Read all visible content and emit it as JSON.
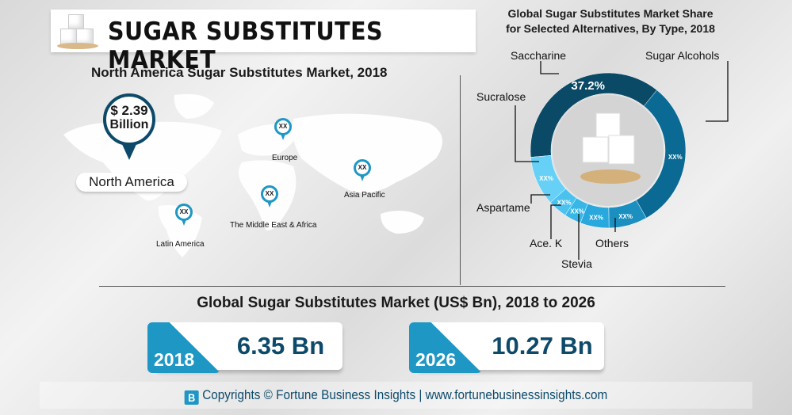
{
  "header": {
    "title": "SUGAR SUBSTITUTES MARKET"
  },
  "map": {
    "title": "North America Sugar Substitutes Market, 2018",
    "north_america": {
      "value": "$ 2.39",
      "unit": "Billion",
      "label": "North America"
    },
    "regions": [
      {
        "label": "Europe",
        "value": "XX"
      },
      {
        "label": "Asia Pacific",
        "value": "XX"
      },
      {
        "label": "The Middle East & Africa",
        "value": "XX"
      },
      {
        "label": "Latin America",
        "value": "XX"
      }
    ]
  },
  "chart_data": {
    "type": "pie",
    "title": "Global Sugar Substitutes Market Share for Selected Alternatives, By Type, 2018",
    "title_lines": [
      "Global Sugar Substitutes Market Share",
      "for Selected Alternatives, By Type, 2018"
    ],
    "donut": true,
    "slices": [
      {
        "name": "Saccharine",
        "value": 37.2,
        "label": "37.2%",
        "color": "#0b4a66"
      },
      {
        "name": "Sugar Alcohols",
        "value": 31,
        "label": "XX%",
        "color": "#0a6a94"
      },
      {
        "name": "Others",
        "value": 8,
        "label": "XX%",
        "color": "#1a8fc0"
      },
      {
        "name": "Stevia",
        "value": 6,
        "label": "XX%",
        "color": "#28a8dc"
      },
      {
        "name": "Ace. K",
        "value": 3.5,
        "label": "XX%",
        "color": "#38b6e6"
      },
      {
        "name": "Aspartame",
        "value": 4,
        "label": "XX%",
        "color": "#4bc2ee"
      },
      {
        "name": "Sucralose",
        "value": 10.3,
        "label": "XX%",
        "color": "#66d0f6"
      }
    ]
  },
  "market": {
    "title": "Global Sugar Substitutes Market (US$ Bn), 2018 to 2026",
    "cards": [
      {
        "year": "2018",
        "value": "6.35 Bn"
      },
      {
        "year": "2026",
        "value": "10.27 Bn"
      }
    ]
  },
  "footer": {
    "logo": "B",
    "text": "Copyrights © Fortune Business Insights | www.fortunebusinessinsights.com"
  },
  "colors": {
    "accent": "#1e97c4",
    "dark": "#0d4a6a"
  }
}
